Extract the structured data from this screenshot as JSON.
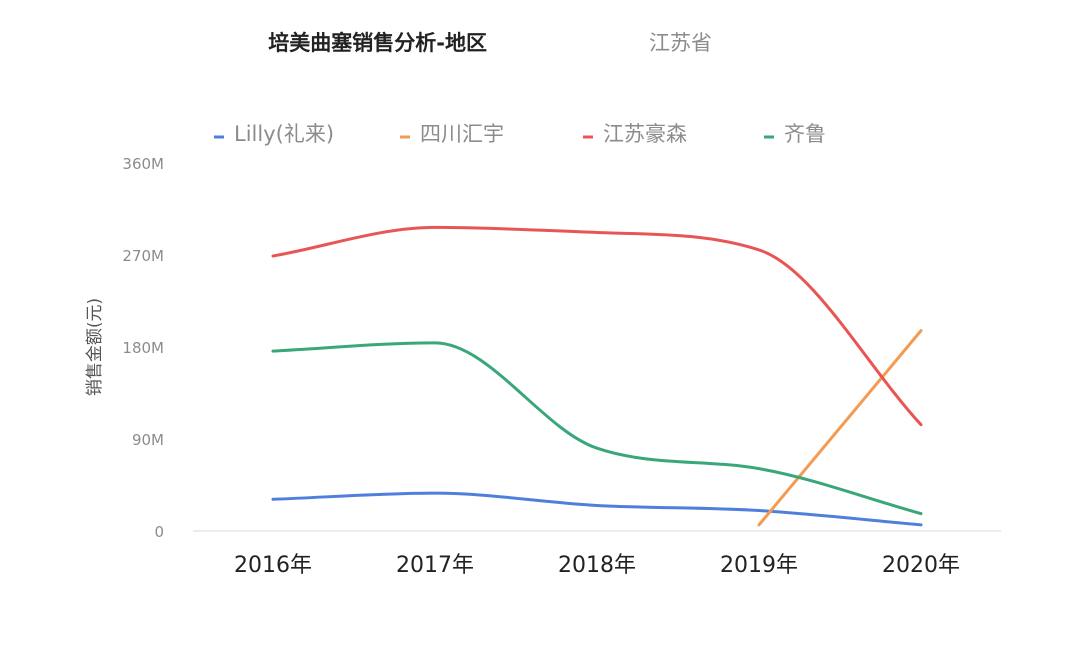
{
  "chart_data": {
    "type": "line",
    "title": "培美曲塞销售分析-地区",
    "subtitle": "江苏省",
    "xlabel": "",
    "ylabel": "销售金额(元)",
    "categories": [
      "2016年",
      "2017年",
      "2018年",
      "2019年",
      "2020年"
    ],
    "ylim": [
      0,
      360
    ],
    "yticks": [
      "0",
      "90M",
      "180M",
      "270M",
      "360M"
    ],
    "y_unit": "M",
    "grid": false,
    "legend_position": "top",
    "smooth": true,
    "series": [
      {
        "name": "Lilly(礼来)",
        "color": "#4f7fdc",
        "values": [
          31,
          37,
          25,
          20,
          6
        ]
      },
      {
        "name": "四川汇宇",
        "color": "#f39b50",
        "values": [
          null,
          null,
          null,
          6,
          196
        ]
      },
      {
        "name": "江苏豪森",
        "color": "#e95555",
        "values": [
          269,
          297,
          292,
          275,
          104
        ]
      },
      {
        "name": "齐鲁",
        "color": "#3aa77a",
        "values": [
          176,
          184,
          81,
          61,
          17
        ]
      }
    ]
  }
}
